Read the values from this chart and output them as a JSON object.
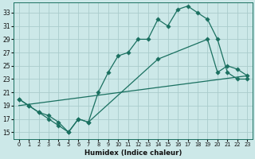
{
  "xlabel": "Humidex (Indice chaleur)",
  "bg_color": "#cce8e8",
  "grid_color": "#aacccc",
  "line_color": "#1a7060",
  "xlim": [
    -0.5,
    23.5
  ],
  "ylim": [
    14.0,
    34.5
  ],
  "xticks": [
    0,
    1,
    2,
    3,
    4,
    5,
    6,
    7,
    8,
    9,
    10,
    11,
    12,
    13,
    14,
    15,
    16,
    17,
    18,
    19,
    20,
    21,
    22,
    23
  ],
  "yticks": [
    15,
    17,
    19,
    21,
    23,
    25,
    27,
    29,
    31,
    33
  ],
  "line1_x": [
    0,
    1,
    2,
    3,
    4,
    5,
    6,
    7,
    8,
    9,
    10,
    11,
    12,
    13,
    14,
    15,
    16,
    17,
    18,
    19,
    20,
    21,
    22,
    23
  ],
  "line1_y": [
    20,
    19,
    18,
    17,
    16,
    15,
    17,
    16.5,
    21,
    24,
    26.5,
    27,
    29,
    29,
    32,
    31,
    33.5,
    34,
    33,
    32,
    29,
    24,
    23,
    23
  ],
  "line2_x": [
    0,
    23
  ],
  "line2_y": [
    19,
    23.5
  ],
  "line3_x": [
    0,
    1,
    2,
    3,
    4,
    5,
    6,
    7,
    14,
    19,
    20,
    21,
    22,
    23
  ],
  "line3_y": [
    20,
    19,
    18,
    17.5,
    16.5,
    15,
    17,
    16.5,
    26,
    29,
    24,
    25,
    24.5,
    23.5
  ],
  "xtick_fontsize": 4.8,
  "ytick_fontsize": 5.5,
  "xlabel_fontsize": 6.2
}
